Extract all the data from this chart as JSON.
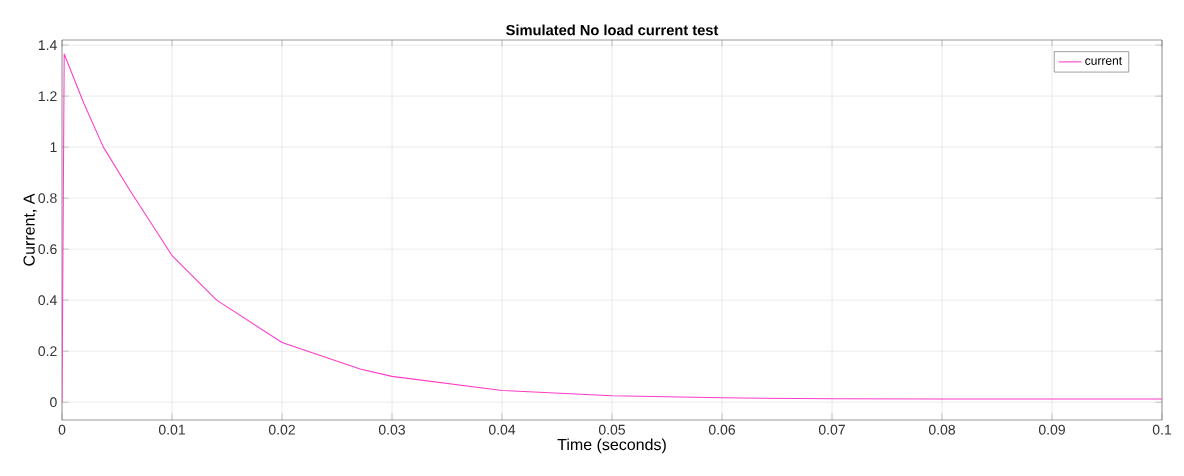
{
  "chart_data": {
    "type": "line",
    "title": "Simulated No load current test",
    "xlabel": "Time (seconds)",
    "ylabel": "Current, A",
    "x": [
      0,
      0.0002,
      0.002,
      0.00376,
      0.00618,
      0.01,
      0.01406,
      0.02,
      0.0271,
      0.03,
      0.04,
      0.05,
      0.06,
      0.07,
      0.08,
      0.09,
      0.1
    ],
    "series": [
      {
        "name": "current",
        "color": "#ff3cc8",
        "values": [
          0,
          1.365,
          1.17,
          1.0,
          0.83,
          0.575,
          0.4,
          0.234,
          0.13,
          0.101,
          0.046,
          0.025,
          0.017,
          0.013,
          0.012,
          0.012,
          0.012
        ]
      }
    ],
    "xlim": [
      0,
      0.1
    ],
    "ylim": [
      -0.07,
      1.42
    ],
    "xticks": [
      0,
      0.01,
      0.02,
      0.03,
      0.04,
      0.05,
      0.06,
      0.07,
      0.08,
      0.09,
      0.1
    ],
    "yticks": [
      0,
      0.2,
      0.4,
      0.6,
      0.8,
      1,
      1.2,
      1.4
    ],
    "grid": true,
    "legend": "top right",
    "marker": "none",
    "line_style": "solid"
  }
}
